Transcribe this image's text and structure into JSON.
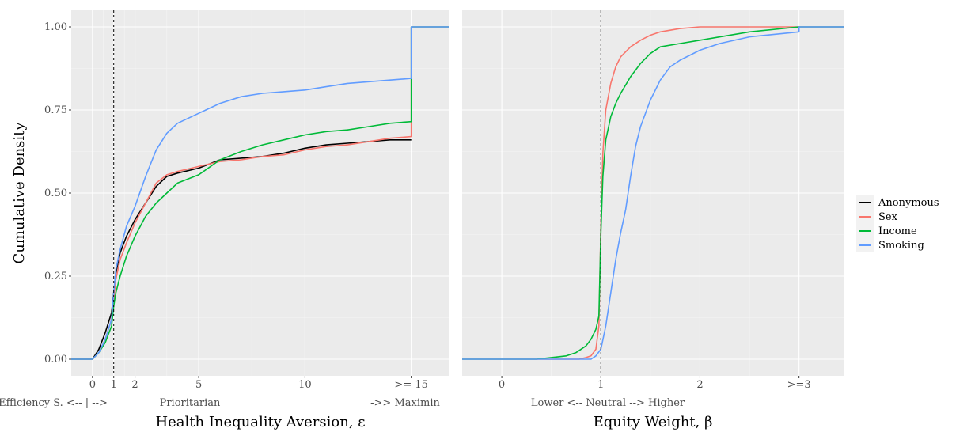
{
  "chart_data": {
    "type": "line",
    "shared": {
      "ylabel": "Cumulative Density",
      "ylim": [
        0,
        1.0
      ],
      "yticks": [
        0,
        0.25,
        0.5,
        0.75,
        1.0
      ],
      "ytick_labels": [
        "0.00",
        "0.25",
        "0.50",
        "0.75",
        "1.00"
      ],
      "grid": true,
      "legend": {
        "placement": "right",
        "entries": [
          {
            "name": "Anonymous",
            "color": "#000000"
          },
          {
            "name": "Sex",
            "color": "#F8766D"
          },
          {
            "name": "Income",
            "color": "#00BA38"
          },
          {
            "name": "Smoking",
            "color": "#619CFF"
          }
        ]
      }
    },
    "panels": [
      {
        "xlabel": "Health Inequality Aversion, ε",
        "xlim": [
          -1.0,
          16.8
        ],
        "xticks": [
          0,
          1,
          2,
          5,
          10,
          15
        ],
        "xtick_labels": [
          "0",
          "1",
          "2",
          "5",
          "10",
          ">= 15"
        ],
        "under_labels": [
          "Efficiency S.  <-- | -->",
          "Prioritarian",
          "->> Maximin"
        ],
        "reference_x": 1,
        "series": [
          {
            "name": "Anonymous",
            "x": [
              -1.0,
              0,
              0.3,
              0.6,
              0.9,
              1.0,
              1.1,
              1.3,
              1.6,
              2.0,
              2.5,
              3.0,
              3.5,
              4.0,
              5.0,
              6.0,
              7.0,
              8.0,
              9.0,
              10.0,
              11.0,
              12.0,
              13.0,
              14.0,
              15.0
            ],
            "y": [
              0,
              0,
              0.03,
              0.08,
              0.14,
              0.2,
              0.26,
              0.32,
              0.37,
              0.42,
              0.47,
              0.52,
              0.55,
              0.56,
              0.575,
              0.6,
              0.605,
              0.61,
              0.62,
              0.635,
              0.645,
              0.65,
              0.655,
              0.66,
              0.66
            ]
          },
          {
            "name": "Sex",
            "x": [
              -1.0,
              0,
              0.3,
              0.6,
              0.9,
              1.0,
              1.1,
              1.3,
              1.6,
              2.0,
              2.5,
              3.0,
              3.5,
              4.0,
              5.0,
              6.0,
              7.0,
              8.0,
              9.0,
              10.0,
              11.0,
              12.0,
              13.0,
              14.0,
              15.0,
              15.0,
              16.8
            ],
            "y": [
              0,
              0,
              0.02,
              0.06,
              0.12,
              0.18,
              0.24,
              0.3,
              0.35,
              0.41,
              0.47,
              0.53,
              0.555,
              0.565,
              0.58,
              0.595,
              0.6,
              0.61,
              0.615,
              0.63,
              0.64,
              0.645,
              0.655,
              0.665,
              0.67,
              1.0,
              1.0
            ]
          },
          {
            "name": "Income",
            "x": [
              -1.0,
              0,
              0.3,
              0.6,
              0.9,
              1.0,
              1.1,
              1.3,
              1.6,
              2.0,
              2.5,
              3.0,
              3.5,
              4.0,
              5.0,
              6.0,
              7.0,
              8.0,
              9.0,
              10.0,
              11.0,
              12.0,
              13.0,
              14.0,
              15.0,
              15.0,
              16.8
            ],
            "y": [
              0,
              0,
              0.02,
              0.05,
              0.1,
              0.16,
              0.2,
              0.25,
              0.31,
              0.37,
              0.43,
              0.47,
              0.5,
              0.53,
              0.555,
              0.6,
              0.625,
              0.645,
              0.66,
              0.675,
              0.685,
              0.69,
              0.7,
              0.71,
              0.715,
              1.0,
              1.0
            ]
          },
          {
            "name": "Smoking",
            "x": [
              -1.0,
              0,
              0.3,
              0.6,
              0.9,
              1.0,
              1.1,
              1.3,
              1.6,
              2.0,
              2.5,
              3.0,
              3.5,
              4.0,
              5.0,
              6.0,
              7.0,
              8.0,
              9.0,
              10.0,
              11.0,
              12.0,
              13.0,
              14.0,
              15.0,
              15.0,
              16.8
            ],
            "y": [
              0,
              0,
              0.02,
              0.06,
              0.12,
              0.2,
              0.27,
              0.33,
              0.4,
              0.46,
              0.55,
              0.63,
              0.68,
              0.71,
              0.74,
              0.77,
              0.79,
              0.8,
              0.805,
              0.81,
              0.82,
              0.83,
              0.835,
              0.84,
              0.845,
              1.0,
              1.0
            ]
          }
        ]
      },
      {
        "xlabel": "Equity Weight, β",
        "xlim": [
          -0.4,
          3.45
        ],
        "xticks": [
          0,
          1,
          2,
          3
        ],
        "xtick_labels": [
          "0",
          "1",
          "2",
          ">=3"
        ],
        "under_labels": [
          "Lower <--     Neutral    -->    Higher"
        ],
        "reference_x": 1,
        "series": [
          {
            "name": "Sex",
            "x": [
              -0.4,
              0.78,
              0.85,
              0.9,
              0.95,
              0.98,
              1.0,
              1.02,
              1.05,
              1.1,
              1.15,
              1.2,
              1.3,
              1.4,
              1.5,
              1.6,
              1.7,
              1.8,
              2.0,
              2.5,
              3.0,
              3.45
            ],
            "y": [
              0,
              0,
              0.005,
              0.01,
              0.03,
              0.1,
              0.4,
              0.62,
              0.75,
              0.83,
              0.88,
              0.91,
              0.94,
              0.96,
              0.975,
              0.985,
              0.99,
              0.995,
              1.0,
              1.0,
              1.0,
              1.0
            ]
          },
          {
            "name": "Income",
            "x": [
              -0.4,
              0.35,
              0.5,
              0.65,
              0.75,
              0.85,
              0.9,
              0.95,
              0.98,
              1.0,
              1.02,
              1.05,
              1.1,
              1.15,
              1.2,
              1.3,
              1.4,
              1.5,
              1.6,
              1.8,
              2.0,
              2.5,
              3.0,
              3.45
            ],
            "y": [
              0,
              0,
              0.005,
              0.01,
              0.02,
              0.04,
              0.06,
              0.09,
              0.13,
              0.38,
              0.55,
              0.66,
              0.73,
              0.77,
              0.8,
              0.85,
              0.89,
              0.92,
              0.94,
              0.95,
              0.96,
              0.985,
              1.0,
              1.0
            ]
          },
          {
            "name": "Smoking",
            "x": [
              -0.4,
              0.9,
              0.95,
              1.0,
              1.05,
              1.1,
              1.15,
              1.2,
              1.25,
              1.3,
              1.35,
              1.4,
              1.5,
              1.6,
              1.7,
              1.8,
              2.0,
              2.2,
              2.5,
              3.0,
              3.0,
              3.45
            ],
            "y": [
              0,
              0,
              0.01,
              0.03,
              0.1,
              0.2,
              0.3,
              0.38,
              0.45,
              0.55,
              0.64,
              0.7,
              0.78,
              0.84,
              0.88,
              0.9,
              0.93,
              0.95,
              0.97,
              0.985,
              1.0,
              1.0
            ]
          }
        ]
      }
    ]
  }
}
